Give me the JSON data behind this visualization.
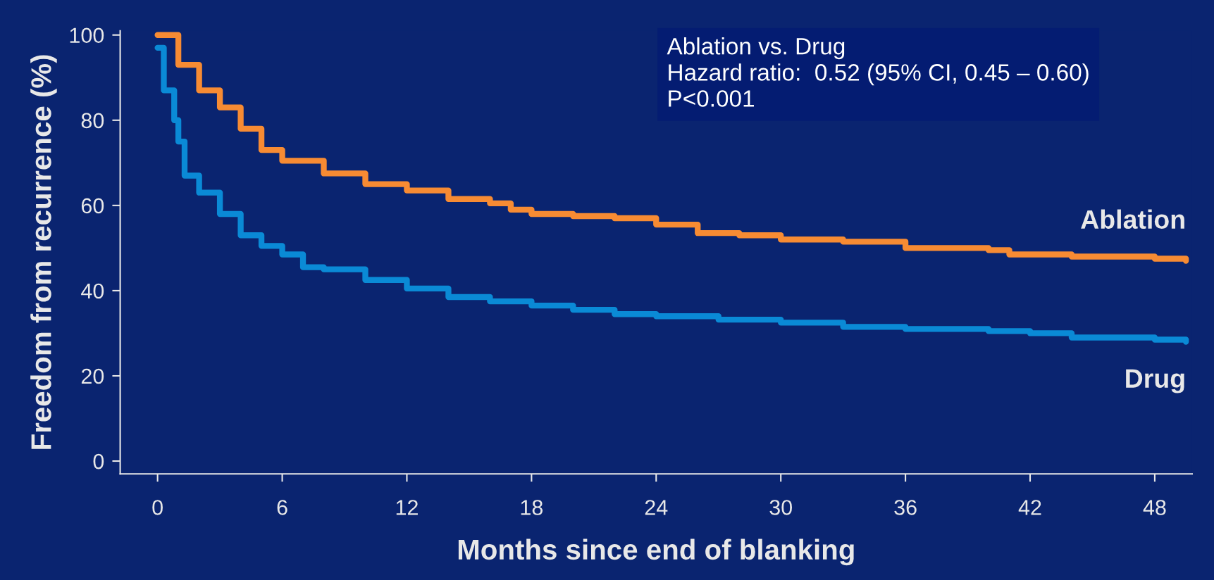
{
  "chart_data": {
    "type": "step",
    "xlabel": "Months since end of blanking",
    "ylabel": "Freedom from recurrence (%)",
    "xlim": [
      -1.8,
      49.8
    ],
    "xticks": [
      0,
      6,
      12,
      18,
      24,
      30,
      36,
      42,
      48
    ],
    "ylim": [
      -3,
      101
    ],
    "yticks": [
      0,
      20,
      40,
      60,
      80,
      100
    ],
    "grid": false,
    "legend": false,
    "annotations": [
      "Ablation vs. Drug\nHazard ratio:  0.52 (95% CI, 0.45 – 0.60)\nP<0.001"
    ],
    "series": [
      {
        "name": "Ablation",
        "color": "#f78b33",
        "x": [
          0,
          1,
          2,
          3,
          4,
          5,
          6,
          8,
          10,
          12,
          14,
          16,
          17,
          18,
          20,
          22,
          24,
          26,
          28,
          30,
          33,
          36,
          40,
          41,
          44,
          48,
          49.5
        ],
        "values": [
          100,
          93,
          87,
          83,
          78,
          73,
          70.5,
          67.5,
          65,
          63.5,
          61.5,
          60.5,
          59,
          58,
          57.5,
          57,
          55.5,
          53.5,
          53,
          52,
          51.5,
          50,
          49.5,
          48.5,
          48,
          47.5,
          47
        ]
      },
      {
        "name": "Drug",
        "color": "#0a8ad6",
        "x": [
          0,
          0.3,
          0.8,
          1,
          1.3,
          2,
          3,
          4,
          5,
          6,
          7,
          8,
          10,
          12,
          14,
          16,
          18,
          20,
          22,
          24,
          27,
          30,
          33,
          36,
          40,
          42,
          44,
          48,
          49.5
        ],
        "values": [
          97,
          87,
          80,
          75,
          67,
          63,
          58,
          53,
          50.5,
          48.5,
          45.5,
          45,
          42.5,
          40.5,
          38.5,
          37.5,
          36.5,
          35.5,
          34.5,
          34,
          33.2,
          32.5,
          31.5,
          31,
          30.5,
          30,
          29,
          28.5,
          28
        ]
      }
    ]
  }
}
